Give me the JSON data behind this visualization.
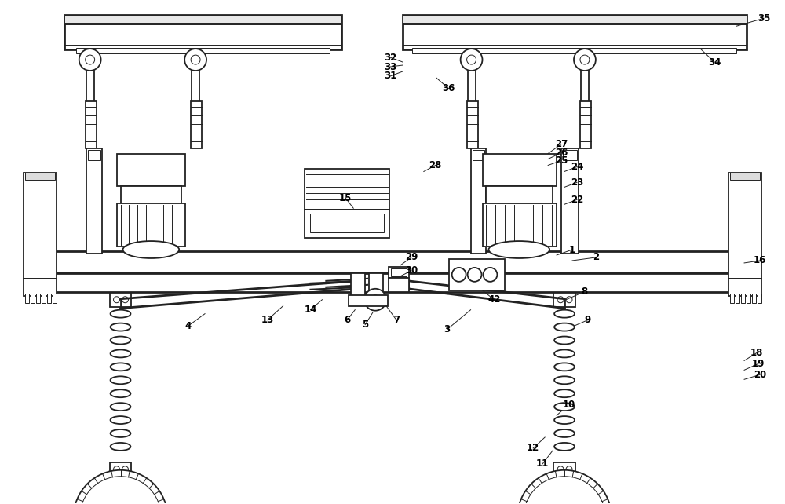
{
  "bg": "#ffffff",
  "lc": "#222222",
  "lw": 1.3,
  "tlw": 0.7,
  "thk": 2.0
}
